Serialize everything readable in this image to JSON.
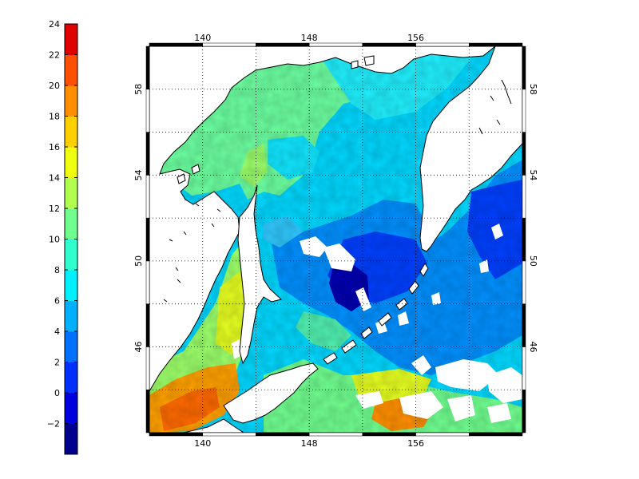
{
  "colorbar": {
    "min": -2,
    "max": 24,
    "step": 2,
    "tick_labels": [
      "24",
      "22",
      "20",
      "18",
      "16",
      "14",
      "12",
      "10",
      "8",
      "6",
      "4",
      "2",
      "0",
      "−2"
    ],
    "colors": [
      "#00008f",
      "#0000df",
      "#0030ff",
      "#0070ff",
      "#00b0ff",
      "#00f0ff",
      "#30ffcf",
      "#70ff8f",
      "#b0ff4f",
      "#f0ff0f",
      "#ffcf00",
      "#ff8f00",
      "#ff4f00",
      "#df0000"
    ]
  },
  "map": {
    "lon_range": [
      136,
      164
    ],
    "lat_range": [
      42,
      60
    ],
    "lon_ticks": [
      {
        "value": 140,
        "label": "140"
      },
      {
        "value": 148,
        "label": "148"
      },
      {
        "value": 156,
        "label": "156"
      }
    ],
    "lat_ticks": [
      {
        "value": 46,
        "label": "46"
      },
      {
        "value": 50,
        "label": "50"
      },
      {
        "value": 54,
        "label": "54"
      },
      {
        "value": 58,
        "label": "58"
      }
    ],
    "grid": "dotted",
    "land_color": "#ffffff",
    "coast_color": "#000000"
  }
}
